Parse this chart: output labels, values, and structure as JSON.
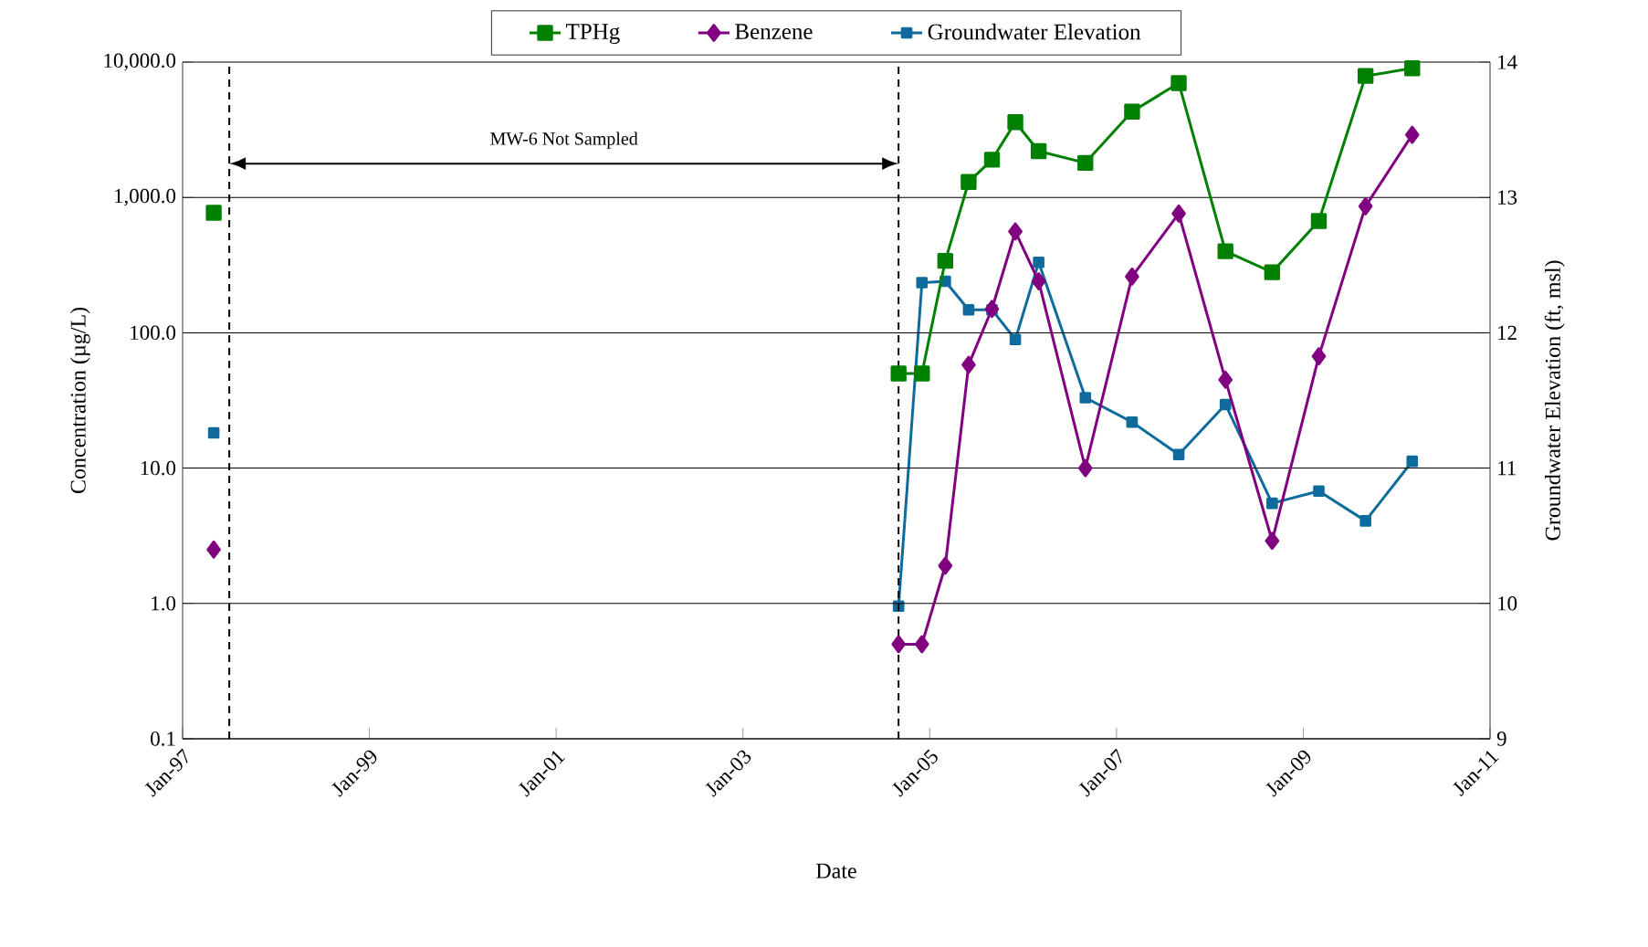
{
  "chart_data": {
    "type": "line",
    "xlabel": "Date",
    "ylabel": "Concentration (µg/L)",
    "y2label": "Groundwater Elevation (ft, msl)",
    "x": [
      "1997-05",
      "2001-01",
      "2004-09",
      "2004-12",
      "2005-03",
      "2005-06",
      "2005-09",
      "2005-12",
      "2006-03",
      "2006-09",
      "2007-03",
      "2007-09",
      "2008-03",
      "2008-09",
      "2009-03",
      "2009-09",
      "2010-03"
    ],
    "series": [
      {
        "name": "TPHg",
        "color": "#008000",
        "marker": "square",
        "values": [
          770,
          null,
          50,
          50,
          340,
          1300,
          1900,
          3600,
          2200,
          1800,
          4300,
          7000,
          400,
          280,
          670,
          7900,
          9000
        ]
      },
      {
        "name": "Benzene",
        "color": "#800080",
        "marker": "diamond",
        "values": [
          2.5,
          null,
          0.5,
          0.5,
          1.9,
          58,
          150,
          560,
          240,
          10,
          260,
          760,
          45,
          2.9,
          67,
          860,
          2900
        ]
      },
      {
        "name": "Groundwater Elevation",
        "color": "#0f6b9c",
        "marker": "square",
        "axis": "y2",
        "values": [
          11.26,
          null,
          9.98,
          12.37,
          12.38,
          12.17,
          12.17,
          11.95,
          12.52,
          11.52,
          11.34,
          11.1,
          11.47,
          10.74,
          10.83,
          10.61,
          11.05
        ]
      }
    ],
    "log": "y",
    "grid": "y",
    "legend": "top",
    "line_style": "solid",
    "xlim": [
      "1997-01",
      "2011-01"
    ],
    "xticks": [
      {
        "value": "1997-01",
        "label": "Jan-97"
      },
      {
        "value": "1999-01",
        "label": "Jan-99"
      },
      {
        "value": "2001-01",
        "label": "Jan-01"
      },
      {
        "value": "2003-01",
        "label": "Jan-03"
      },
      {
        "value": "2005-01",
        "label": "Jan-05"
      },
      {
        "value": "2007-01",
        "label": "Jan-07"
      },
      {
        "value": "2009-01",
        "label": "Jan-09"
      },
      {
        "value": "2011-01",
        "label": "Jan-11"
      }
    ],
    "ylim": [
      0.1,
      10000
    ],
    "yticks": [
      {
        "value": 0.1,
        "label": "0.1"
      },
      {
        "value": 1,
        "label": "1.0"
      },
      {
        "value": 10,
        "label": "10.0"
      },
      {
        "value": 100,
        "label": "100.0"
      },
      {
        "value": 1000,
        "label": "1,000.0"
      },
      {
        "value": 10000,
        "label": "10,000.0"
      }
    ],
    "y2lim": [
      9,
      14
    ],
    "y2ticks": [
      9,
      10,
      11,
      12,
      13,
      14
    ],
    "ref_lines": [
      {
        "axis": "x",
        "value": "1997-07",
        "color": "#000000",
        "line_style": "dashed"
      },
      {
        "axis": "x",
        "value": "2004-09",
        "color": "#000000",
        "line_style": "dashed"
      }
    ],
    "annotations": [
      "MW-6 Not Sampled"
    ]
  }
}
